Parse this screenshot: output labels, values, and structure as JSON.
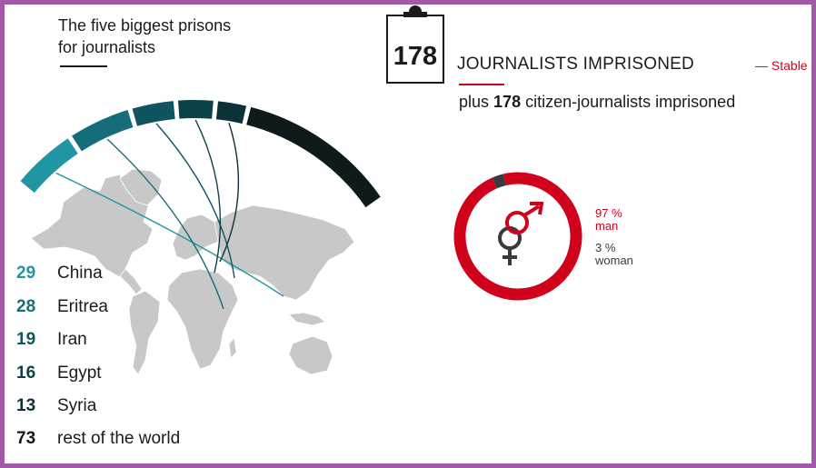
{
  "headline": {
    "line1": "The five biggest prisons",
    "line2": "for journalists"
  },
  "colors": {
    "china": "#2196a3",
    "eritrea": "#156d7a",
    "iran": "#0f5560",
    "egypt": "#0b4149",
    "syria": "#0a3238",
    "rest": "#0f1a1c",
    "accent_red": "#d0021b",
    "woman_gray": "#3a3a3a",
    "map_gray": "#c8c8c8"
  },
  "chart_data": [
    {
      "type": "bar",
      "categories": [
        "China",
        "Eritrea",
        "Iran",
        "Egypt",
        "Syria",
        "rest of the world"
      ],
      "values": [
        29,
        28,
        19,
        16,
        13,
        73
      ],
      "title": "The five biggest prisons for journalists",
      "xlabel": "",
      "ylabel": ""
    },
    {
      "type": "pie",
      "categories": [
        "man",
        "woman"
      ],
      "values": [
        97,
        3
      ]
    }
  ],
  "legend": [
    {
      "value": "29",
      "label": "China"
    },
    {
      "value": "28",
      "label": "Eritrea"
    },
    {
      "value": "19",
      "label": "Iran"
    },
    {
      "value": "16",
      "label": "Egypt"
    },
    {
      "value": "13",
      "label": "Syria"
    },
    {
      "value": "73",
      "label": "rest of the world"
    }
  ],
  "counter": {
    "number": "178",
    "label": "JOURNALISTS IMPRISONED",
    "trend": "— Stable",
    "citizen_prefix": "plus",
    "citizen_number": "178",
    "citizen_suffix": "citizen-journalists imprisoned"
  },
  "gender": {
    "man_pct": "97 %",
    "man_label": "man",
    "woman_pct": "3 %",
    "woman_label": "woman"
  }
}
